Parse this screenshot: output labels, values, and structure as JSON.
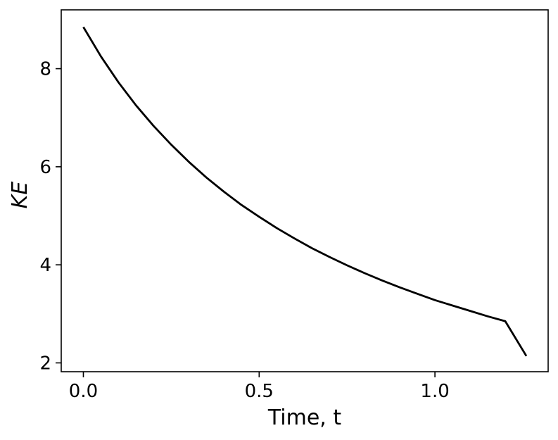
{
  "chart_data": {
    "type": "line",
    "title": "",
    "xlabel": "Time, t",
    "ylabel": "KE",
    "xlim": [
      -0.063,
      1.322
    ],
    "ylim": [
      1.82,
      9.2
    ],
    "xticks": [
      0.0,
      0.5,
      1.0
    ],
    "xtick_labels": [
      "0.0",
      "0.5",
      "1.0"
    ],
    "yticks": [
      2,
      4,
      6,
      8
    ],
    "ytick_labels": [
      "2",
      "4",
      "6",
      "8"
    ],
    "grid": false,
    "legend": "none",
    "series": [
      {
        "color": "#000000",
        "x": [
          0.0,
          0.05,
          0.1,
          0.15,
          0.2,
          0.25,
          0.3,
          0.35,
          0.4,
          0.45,
          0.5,
          0.55,
          0.6,
          0.65,
          0.7,
          0.75,
          0.8,
          0.85,
          0.9,
          0.95,
          1.0,
          1.05,
          1.1,
          1.15,
          1.2,
          1.26
        ],
        "y": [
          8.85,
          8.25,
          7.72,
          7.25,
          6.83,
          6.45,
          6.1,
          5.78,
          5.49,
          5.22,
          4.98,
          4.75,
          4.54,
          4.34,
          4.16,
          3.99,
          3.83,
          3.68,
          3.54,
          3.41,
          3.28,
          3.17,
          3.06,
          2.95,
          2.85,
          2.14
        ]
      }
    ]
  }
}
